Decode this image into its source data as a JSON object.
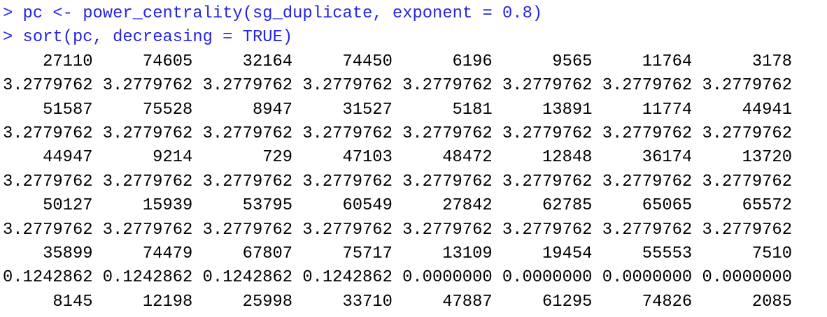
{
  "console": {
    "commands": [
      "> pc <- power_centrality(sg_duplicate, exponent = 0.8)",
      "> sort(pc, decreasing = TRUE)"
    ],
    "output": [
      {
        "names": [
          "27110",
          "74605",
          "32164",
          "74450",
          "6196",
          "9565",
          "11764",
          "3178"
        ],
        "values": [
          "3.2779762",
          "3.2779762",
          "3.2779762",
          "3.2779762",
          "3.2779762",
          "3.2779762",
          "3.2779762",
          "3.2779762"
        ]
      },
      {
        "names": [
          "51587",
          "75528",
          "8947",
          "31527",
          "5181",
          "13891",
          "11774",
          "44941"
        ],
        "values": [
          "3.2779762",
          "3.2779762",
          "3.2779762",
          "3.2779762",
          "3.2779762",
          "3.2779762",
          "3.2779762",
          "3.2779762"
        ]
      },
      {
        "names": [
          "44947",
          "9214",
          "729",
          "47103",
          "48472",
          "12848",
          "36174",
          "13720"
        ],
        "values": [
          "3.2779762",
          "3.2779762",
          "3.2779762",
          "3.2779762",
          "3.2779762",
          "3.2779762",
          "3.2779762",
          "3.2779762"
        ]
      },
      {
        "names": [
          "50127",
          "15939",
          "53795",
          "60549",
          "27842",
          "62785",
          "65065",
          "65572"
        ],
        "values": [
          "3.2779762",
          "3.2779762",
          "3.2779762",
          "3.2779762",
          "3.2779762",
          "3.2779762",
          "3.2779762",
          "3.2779762"
        ]
      },
      {
        "names": [
          "35899",
          "74479",
          "67807",
          "75717",
          "13109",
          "19454",
          "55553",
          "7510"
        ],
        "values": [
          "0.1242862",
          "0.1242862",
          "0.1242862",
          "0.1242862",
          "0.0000000",
          "0.0000000",
          "0.0000000",
          "0.0000000"
        ]
      },
      {
        "names": [
          "8145",
          "12198",
          "25998",
          "33710",
          "47887",
          "61295",
          "74826",
          "2085"
        ]
      }
    ]
  }
}
